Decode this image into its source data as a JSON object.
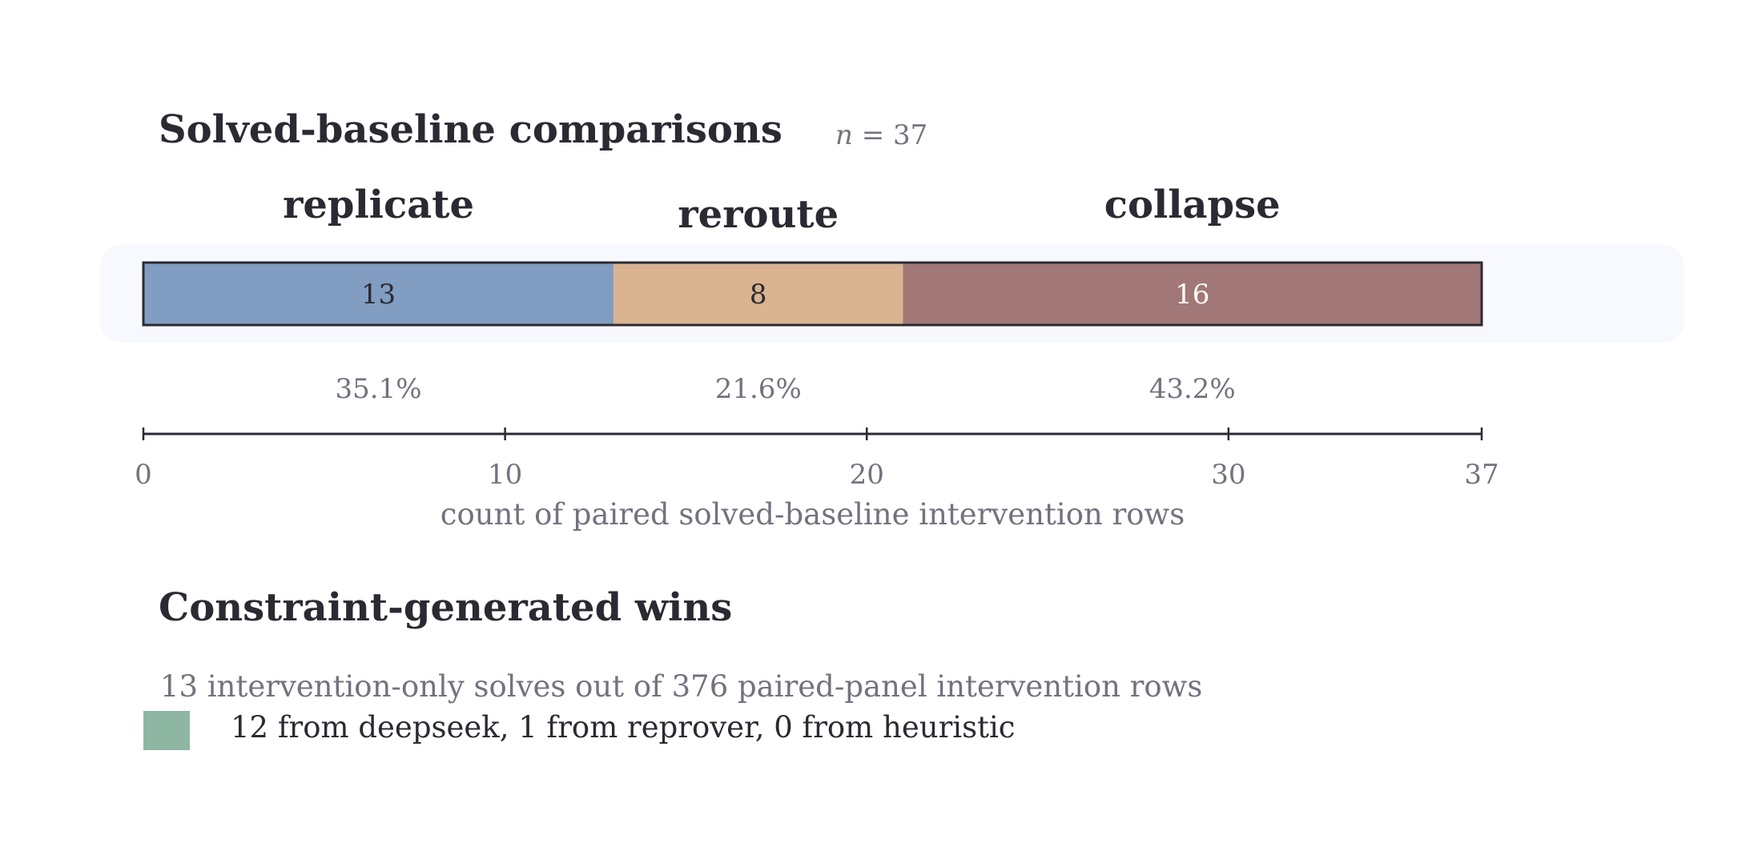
{
  "chart_data": {
    "type": "bar",
    "orientation": "horizontal-stacked",
    "title": "Solved-baseline comparisons",
    "n": {
      "symbol": "n",
      "text": " = 37",
      "value": 37
    },
    "categories": [
      "replicate",
      "reroute",
      "collapse"
    ],
    "values": [
      13,
      8,
      16
    ],
    "percent_labels": [
      "35.1%",
      "21.6%",
      "43.2%"
    ],
    "colors": [
      "#819dc2",
      "#dab491",
      "#a17877"
    ],
    "value_text_colors": [
      "#2b2a33",
      "#2b2a33",
      "#ffffff"
    ],
    "xlim": [
      0,
      37
    ],
    "xticks": [
      0,
      10,
      20,
      30,
      37
    ],
    "xlabel": "count of paired solved-baseline intervention rows"
  },
  "wins": {
    "title": "Constraint-generated wins",
    "summary": "13 intervention-only solves out of 376 paired-panel intervention rows",
    "legend": {
      "color": "#8db6a3",
      "text": "12 from deepseek, 1 from reprover, 0 from heuristic"
    }
  }
}
